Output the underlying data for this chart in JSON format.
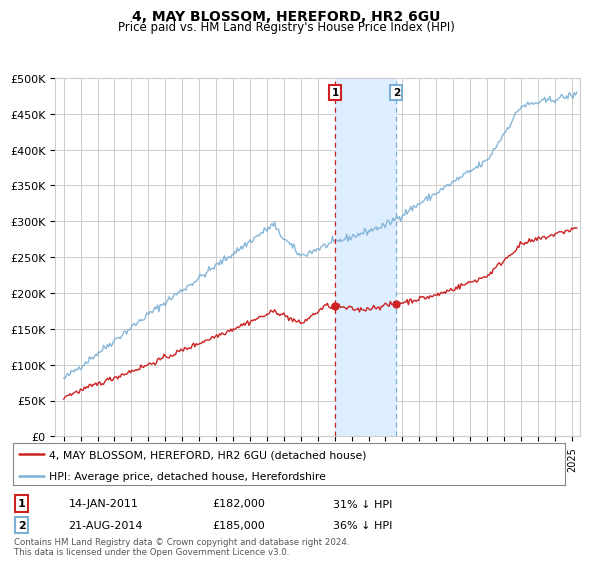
{
  "title": "4, MAY BLOSSOM, HEREFORD, HR2 6GU",
  "subtitle": "Price paid vs. HM Land Registry's House Price Index (HPI)",
  "ylabel_ticks": [
    "£0",
    "£50K",
    "£100K",
    "£150K",
    "£200K",
    "£250K",
    "£300K",
    "£350K",
    "£400K",
    "£450K",
    "£500K"
  ],
  "ytick_values": [
    0,
    50000,
    100000,
    150000,
    200000,
    250000,
    300000,
    350000,
    400000,
    450000,
    500000
  ],
  "xlim_start": 1994.5,
  "xlim_end": 2025.5,
  "ylim": [
    0,
    500000
  ],
  "hpi_color": "#7BAFD4",
  "price_color": "#CC2222",
  "marker1_x": 2011.04,
  "marker2_x": 2014.64,
  "marker1_price": 182000,
  "marker2_price": 185000,
  "marker1_date": "14-JAN-2011",
  "marker2_date": "21-AUG-2014",
  "marker1_pct": "31% ↓ HPI",
  "marker2_pct": "36% ↓ HPI",
  "legend_label_price": "4, MAY BLOSSOM, HEREFORD, HR2 6GU (detached house)",
  "legend_label_hpi": "HPI: Average price, detached house, Herefordshire",
  "footnote": "Contains HM Land Registry data © Crown copyright and database right 2024.\nThis data is licensed under the Open Government Licence v3.0.",
  "background_color": "#FFFFFF",
  "grid_color": "#CCCCCC",
  "shaded_region_color": "#DDEEFF"
}
